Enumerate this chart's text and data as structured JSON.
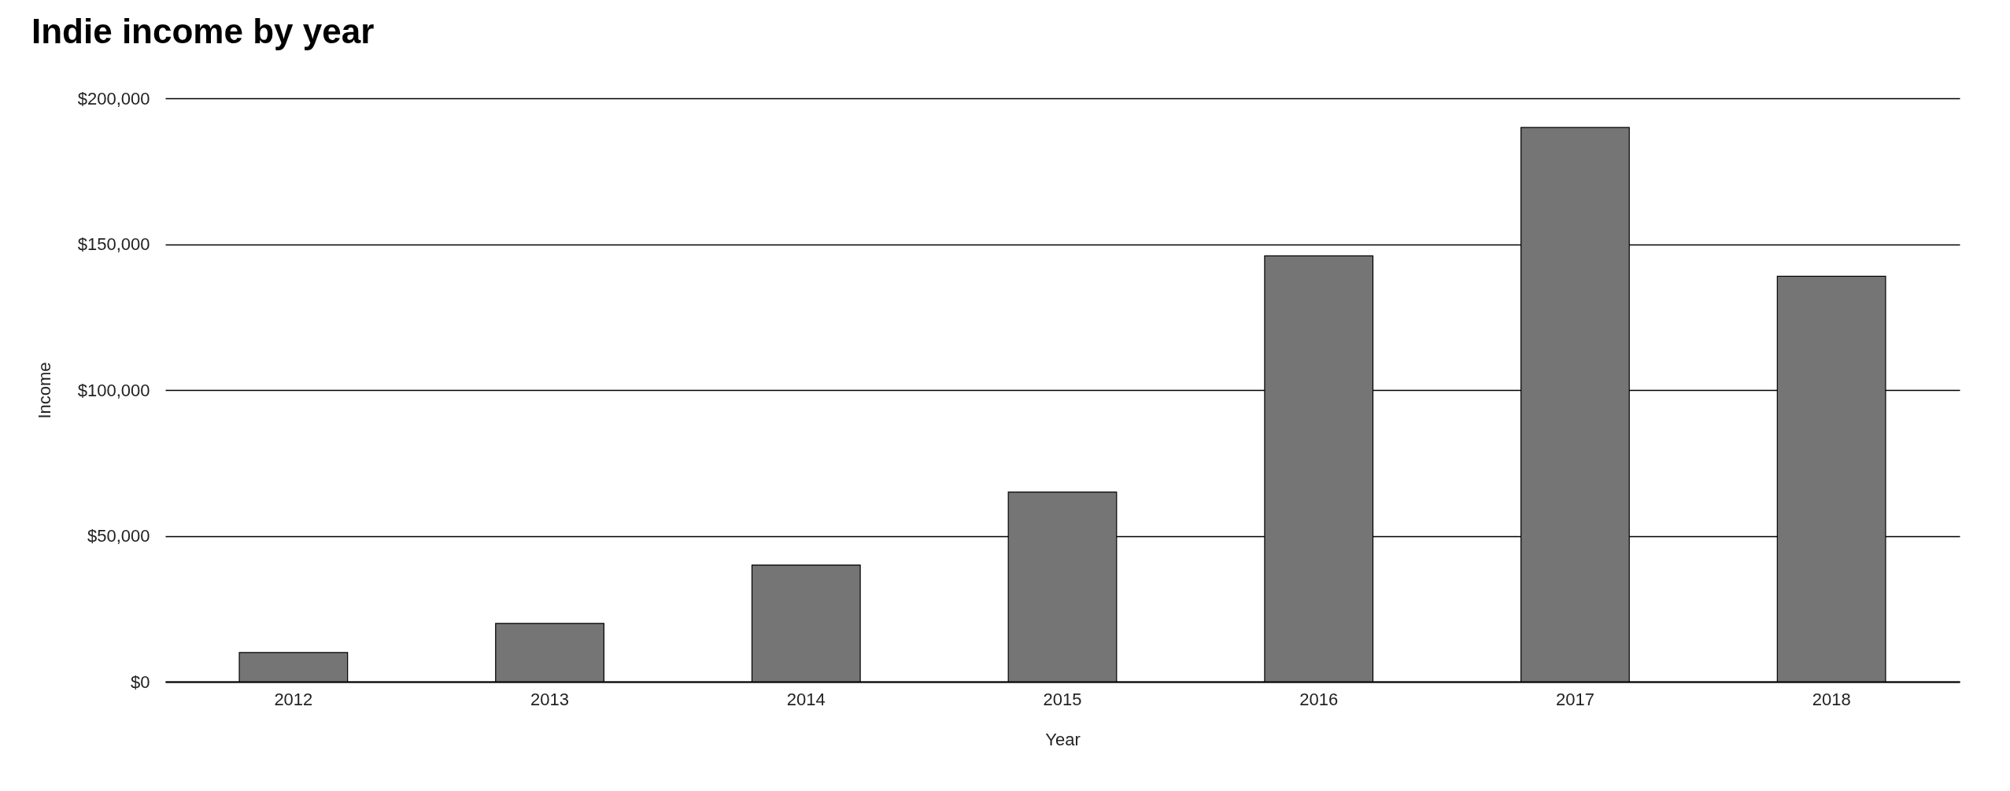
{
  "chart_data": {
    "type": "bar",
    "title": "Indie income by year",
    "xlabel": "Year",
    "ylabel": "Income",
    "categories": [
      "2012",
      "2013",
      "2014",
      "2015",
      "2016",
      "2017",
      "2018"
    ],
    "values": [
      10000,
      20000,
      40000,
      65000,
      146000,
      190000,
      139000
    ],
    "color": "#757575",
    "ylim": [
      0,
      200000
    ],
    "yticks": [
      {
        "value": 0,
        "label": "$0"
      },
      {
        "value": 50000,
        "label": "$50,000"
      },
      {
        "value": 100000,
        "label": "$100,000"
      },
      {
        "value": 150000,
        "label": "$150,000"
      },
      {
        "value": 200000,
        "label": "$200,000"
      }
    ],
    "grid": "y"
  }
}
